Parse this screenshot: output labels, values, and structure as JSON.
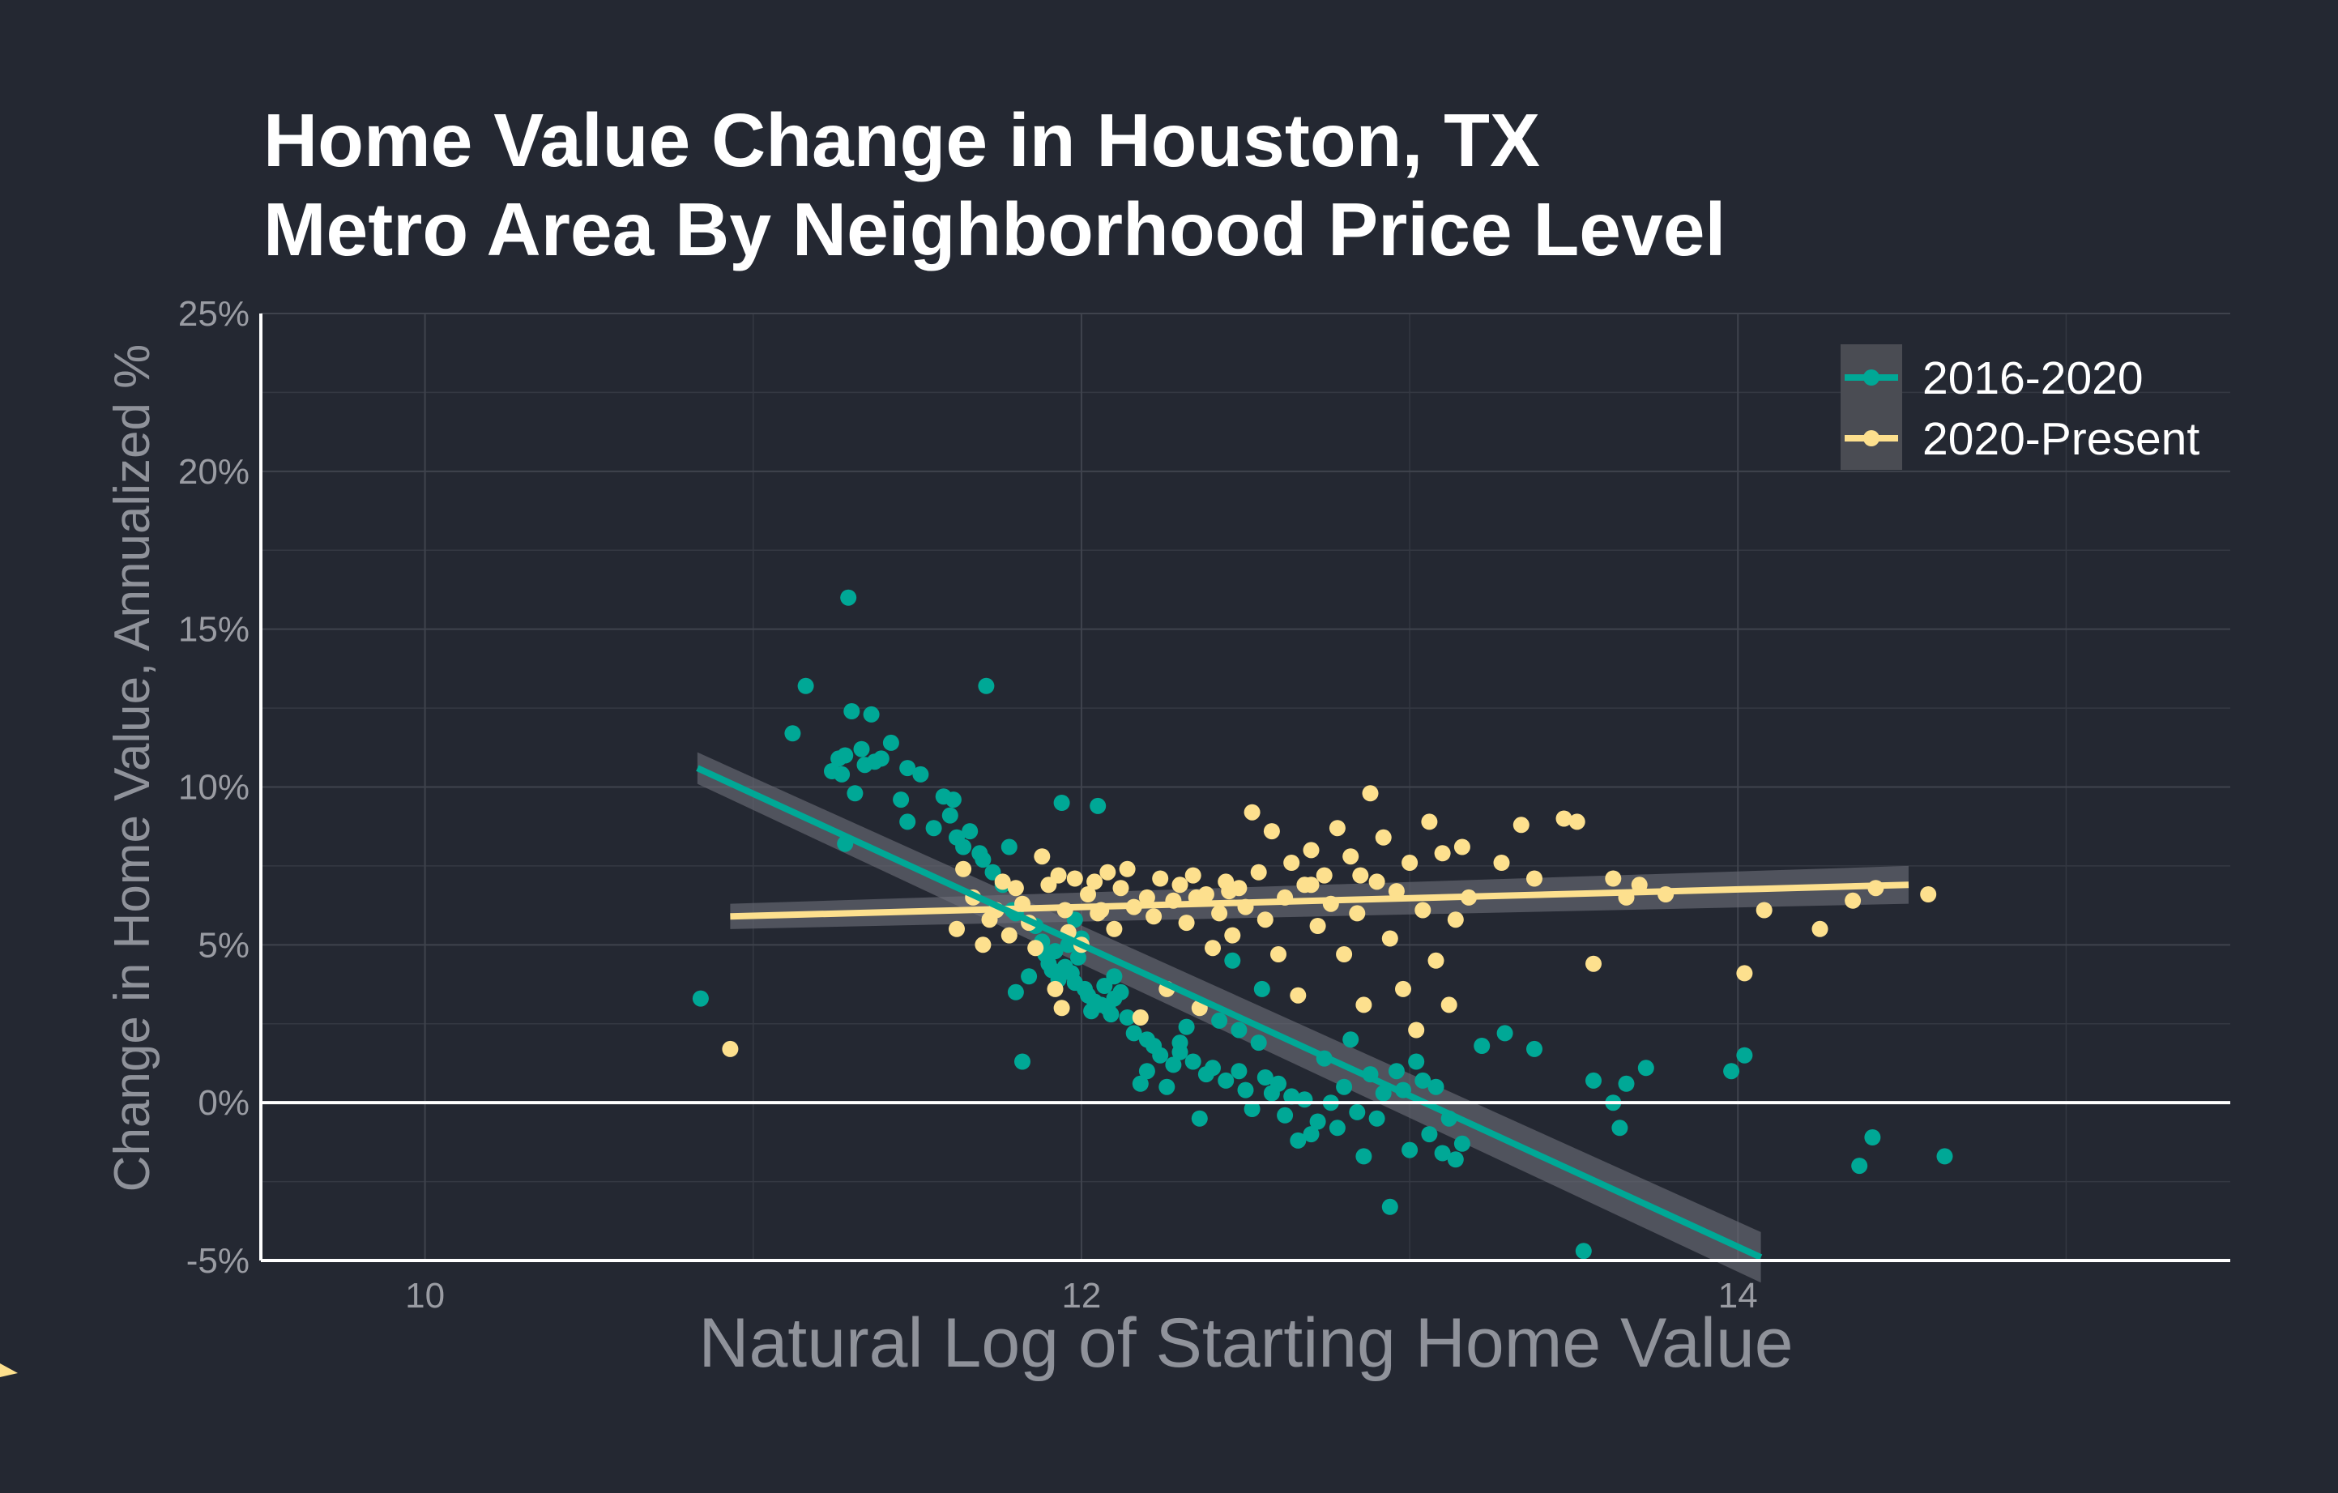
{
  "chart_data": {
    "type": "scatter",
    "title": [
      "Home Value Change in Houston, TX",
      "Metro Area By Neighborhood Price Level"
    ],
    "xlabel": "Natural Log of Starting Home Value",
    "ylabel": "Change in Home Value, Annualized %",
    "xlim": [
      9.5,
      15.5
    ],
    "ylim": [
      -5,
      25
    ],
    "x_ticks": [
      10,
      12,
      14
    ],
    "x_tick_labels": [
      "10",
      "12",
      "14"
    ],
    "y_ticks": [
      -5,
      0,
      5,
      10,
      15,
      20,
      25
    ],
    "y_tick_labels": [
      "-5%",
      "0%",
      "5%",
      "10%",
      "15%",
      "20%",
      "25%"
    ],
    "grid": true,
    "zero_line": 0,
    "legend_position": "top-right",
    "series": [
      {
        "name": "2016-2020",
        "color": "#00a896",
        "trend": {
          "x": [
            10.83,
            14.07
          ],
          "y": [
            10.6,
            -4.9
          ],
          "band": [
            0.5,
            0.8
          ]
        },
        "points": [
          [
            10.84,
            3.3
          ],
          [
            11.12,
            11.7
          ],
          [
            11.16,
            13.2
          ],
          [
            11.29,
            16.0
          ],
          [
            11.26,
            10.9
          ],
          [
            11.24,
            10.5
          ],
          [
            11.27,
            10.4
          ],
          [
            11.28,
            11.0
          ],
          [
            11.3,
            12.4
          ],
          [
            11.31,
            9.8
          ],
          [
            11.33,
            11.2
          ],
          [
            11.34,
            10.7
          ],
          [
            11.36,
            12.3
          ],
          [
            11.37,
            10.8
          ],
          [
            11.39,
            10.9
          ],
          [
            11.42,
            11.4
          ],
          [
            11.45,
            9.6
          ],
          [
            11.47,
            8.9
          ],
          [
            11.47,
            10.6
          ],
          [
            11.51,
            10.4
          ],
          [
            11.28,
            8.2
          ],
          [
            11.55,
            8.7
          ],
          [
            11.58,
            9.7
          ],
          [
            11.6,
            9.1
          ],
          [
            11.61,
            9.6
          ],
          [
            11.62,
            8.4
          ],
          [
            11.64,
            8.1
          ],
          [
            11.66,
            8.6
          ],
          [
            11.69,
            7.9
          ],
          [
            11.7,
            7.7
          ],
          [
            11.71,
            13.2
          ],
          [
            11.73,
            7.3
          ],
          [
            11.76,
            6.9
          ],
          [
            11.78,
            8.1
          ],
          [
            11.79,
            6.1
          ],
          [
            11.8,
            3.5
          ],
          [
            11.82,
            1.3
          ],
          [
            11.84,
            4.0
          ],
          [
            11.86,
            5.6
          ],
          [
            11.88,
            5.1
          ],
          [
            11.89,
            4.7
          ],
          [
            11.9,
            4.4
          ],
          [
            11.91,
            4.2
          ],
          [
            11.92,
            4.8
          ],
          [
            11.93,
            3.9
          ],
          [
            11.94,
            9.5
          ],
          [
            11.95,
            4.3
          ],
          [
            11.96,
            5.0
          ],
          [
            11.97,
            4.1
          ],
          [
            11.98,
            3.8
          ],
          [
            11.99,
            4.6
          ],
          [
            12.0,
            5.2
          ],
          [
            12.01,
            3.6
          ],
          [
            12.02,
            3.4
          ],
          [
            12.03,
            2.9
          ],
          [
            12.04,
            3.2
          ],
          [
            12.05,
            9.4
          ],
          [
            12.06,
            3.1
          ],
          [
            12.07,
            3.7
          ],
          [
            12.08,
            3.0
          ],
          [
            12.09,
            2.8
          ],
          [
            12.1,
            3.3
          ],
          [
            12.12,
            3.5
          ],
          [
            12.14,
            2.7
          ],
          [
            12.16,
            2.2
          ],
          [
            12.18,
            0.6
          ],
          [
            12.2,
            2.0
          ],
          [
            12.22,
            1.8
          ],
          [
            12.24,
            1.5
          ],
          [
            12.26,
            0.5
          ],
          [
            12.28,
            1.2
          ],
          [
            12.3,
            1.6
          ],
          [
            12.32,
            2.4
          ],
          [
            12.34,
            1.3
          ],
          [
            12.36,
            -0.5
          ],
          [
            12.38,
            0.9
          ],
          [
            12.4,
            1.1
          ],
          [
            12.42,
            2.6
          ],
          [
            12.44,
            0.7
          ],
          [
            12.46,
            4.5
          ],
          [
            12.48,
            1.0
          ],
          [
            12.5,
            0.4
          ],
          [
            12.52,
            -0.2
          ],
          [
            12.54,
            1.9
          ],
          [
            12.56,
            0.8
          ],
          [
            12.58,
            0.3
          ],
          [
            12.6,
            0.6
          ],
          [
            12.62,
            -0.4
          ],
          [
            12.64,
            0.2
          ],
          [
            12.66,
            -1.2
          ],
          [
            12.68,
            0.1
          ],
          [
            12.7,
            -1.0
          ],
          [
            12.72,
            -0.6
          ],
          [
            12.74,
            1.4
          ],
          [
            12.76,
            0.0
          ],
          [
            12.78,
            -0.8
          ],
          [
            12.8,
            0.5
          ],
          [
            12.82,
            2.0
          ],
          [
            12.84,
            -0.3
          ],
          [
            12.86,
            -1.7
          ],
          [
            12.88,
            0.9
          ],
          [
            12.9,
            -0.5
          ],
          [
            12.92,
            0.3
          ],
          [
            12.94,
            -3.3
          ],
          [
            12.96,
            1.0
          ],
          [
            12.98,
            0.4
          ],
          [
            13.0,
            -1.5
          ],
          [
            13.02,
            1.3
          ],
          [
            13.04,
            0.7
          ],
          [
            13.06,
            -1.0
          ],
          [
            13.08,
            0.5
          ],
          [
            13.1,
            -1.6
          ],
          [
            13.12,
            -0.5
          ],
          [
            13.14,
            -1.8
          ],
          [
            13.16,
            -1.3
          ],
          [
            13.22,
            1.8
          ],
          [
            13.29,
            2.2
          ],
          [
            13.38,
            1.7
          ],
          [
            13.53,
            -4.7
          ],
          [
            13.56,
            0.7
          ],
          [
            13.62,
            0.0
          ],
          [
            13.64,
            -0.8
          ],
          [
            13.66,
            0.6
          ],
          [
            13.72,
            1.1
          ],
          [
            13.98,
            1.0
          ],
          [
            14.02,
            1.5
          ],
          [
            14.37,
            -2.0
          ],
          [
            14.41,
            -1.1
          ],
          [
            14.63,
            -1.7
          ],
          [
            12.55,
            3.6
          ],
          [
            12.1,
            4.0
          ],
          [
            12.2,
            1.0
          ],
          [
            11.8,
            6.0
          ],
          [
            11.98,
            5.8
          ],
          [
            12.3,
            1.9
          ],
          [
            12.48,
            2.3
          ]
        ]
      },
      {
        "name": "2020-Present",
        "color": "#fde08e",
        "trend": {
          "x": [
            10.93,
            14.52
          ],
          "y": [
            5.9,
            6.9
          ],
          "band": [
            0.4,
            0.6
          ]
        },
        "points": [
          [
            10.93,
            1.7
          ],
          [
            11.62,
            5.5
          ],
          [
            11.64,
            7.4
          ],
          [
            11.67,
            6.5
          ],
          [
            11.7,
            5.0
          ],
          [
            11.72,
            5.8
          ],
          [
            11.74,
            6.1
          ],
          [
            11.76,
            7.0
          ],
          [
            11.78,
            5.3
          ],
          [
            11.8,
            6.8
          ],
          [
            11.82,
            6.3
          ],
          [
            11.84,
            5.7
          ],
          [
            11.86,
            4.9
          ],
          [
            11.88,
            7.8
          ],
          [
            11.9,
            6.9
          ],
          [
            11.92,
            3.6
          ],
          [
            11.93,
            7.2
          ],
          [
            11.94,
            3.0
          ],
          [
            11.96,
            5.4
          ],
          [
            11.98,
            7.1
          ],
          [
            12.0,
            5.0
          ],
          [
            12.02,
            6.6
          ],
          [
            12.04,
            7.0
          ],
          [
            12.06,
            6.1
          ],
          [
            12.08,
            7.3
          ],
          [
            12.1,
            5.5
          ],
          [
            12.12,
            6.8
          ],
          [
            12.14,
            7.4
          ],
          [
            12.16,
            6.2
          ],
          [
            12.18,
            2.7
          ],
          [
            12.2,
            6.5
          ],
          [
            12.22,
            5.9
          ],
          [
            12.24,
            7.1
          ],
          [
            12.26,
            3.6
          ],
          [
            12.28,
            6.4
          ],
          [
            12.3,
            6.9
          ],
          [
            12.32,
            5.7
          ],
          [
            12.34,
            7.2
          ],
          [
            12.36,
            3.0
          ],
          [
            12.38,
            6.6
          ],
          [
            12.4,
            4.9
          ],
          [
            12.42,
            6.0
          ],
          [
            12.44,
            7.0
          ],
          [
            12.46,
            5.3
          ],
          [
            12.48,
            6.8
          ],
          [
            12.5,
            6.2
          ],
          [
            12.52,
            9.2
          ],
          [
            12.54,
            7.3
          ],
          [
            12.56,
            5.8
          ],
          [
            12.58,
            8.6
          ],
          [
            12.6,
            4.7
          ],
          [
            12.62,
            6.5
          ],
          [
            12.64,
            7.6
          ],
          [
            12.66,
            3.4
          ],
          [
            12.68,
            6.9
          ],
          [
            12.7,
            8.0
          ],
          [
            12.72,
            5.6
          ],
          [
            12.74,
            7.2
          ],
          [
            12.76,
            6.3
          ],
          [
            12.78,
            8.7
          ],
          [
            12.8,
            4.7
          ],
          [
            12.82,
            7.8
          ],
          [
            12.84,
            6.0
          ],
          [
            12.86,
            3.1
          ],
          [
            12.88,
            9.8
          ],
          [
            12.9,
            7.0
          ],
          [
            12.92,
            8.4
          ],
          [
            12.94,
            5.2
          ],
          [
            12.96,
            6.7
          ],
          [
            12.98,
            3.6
          ],
          [
            13.0,
            7.6
          ],
          [
            13.02,
            2.3
          ],
          [
            13.04,
            6.1
          ],
          [
            13.06,
            8.9
          ],
          [
            13.08,
            4.5
          ],
          [
            13.1,
            7.9
          ],
          [
            13.12,
            3.1
          ],
          [
            13.14,
            5.8
          ],
          [
            13.16,
            8.1
          ],
          [
            13.18,
            6.5
          ],
          [
            13.28,
            7.6
          ],
          [
            13.34,
            8.8
          ],
          [
            13.38,
            7.1
          ],
          [
            13.47,
            9.0
          ],
          [
            13.51,
            8.9
          ],
          [
            13.56,
            4.4
          ],
          [
            13.62,
            7.1
          ],
          [
            13.66,
            6.5
          ],
          [
            13.7,
            6.9
          ],
          [
            13.78,
            6.6
          ],
          [
            14.02,
            4.1
          ],
          [
            14.08,
            6.1
          ],
          [
            14.25,
            5.5
          ],
          [
            14.35,
            6.4
          ],
          [
            14.42,
            6.8
          ],
          [
            14.58,
            6.6
          ],
          [
            11.95,
            6.1
          ],
          [
            12.35,
            6.5
          ],
          [
            12.7,
            6.9
          ],
          [
            12.05,
            6.0
          ],
          [
            12.45,
            6.7
          ],
          [
            12.85,
            7.2
          ]
        ]
      }
    ]
  }
}
